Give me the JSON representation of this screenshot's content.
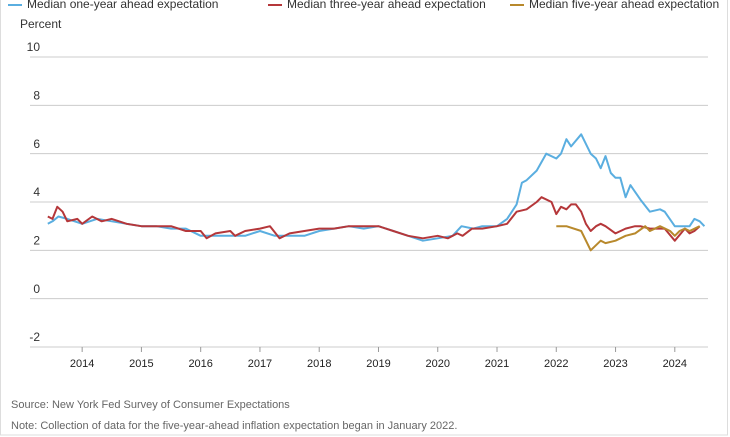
{
  "chart_data": {
    "type": "line",
    "y_axis_label": "Percent",
    "source": "Source: New York Fed Survey of Consumer Expectations",
    "note": "Note: Collection of data for the five-year-ahead inflation expectation began in January 2022.",
    "xlim": [
      2013.12,
      2024.56
    ],
    "xticks": [
      2014,
      2015,
      2016,
      2017,
      2018,
      2019,
      2020,
      2021,
      2022,
      2023,
      2024
    ],
    "ylim": [
      -2,
      10
    ],
    "yticks": [
      -2,
      0,
      2,
      4,
      6,
      8,
      10
    ],
    "grid": true,
    "legend": "top",
    "series": [
      {
        "name": "Median one-year ahead expectation",
        "color": "#5aaee0",
        "x": [
          2013.42,
          2013.5,
          2013.6,
          2013.75,
          2014,
          2014.25,
          2014.5,
          2014.75,
          2015,
          2015.25,
          2015.5,
          2015.75,
          2016,
          2016.25,
          2016.5,
          2016.75,
          2017,
          2017.25,
          2017.5,
          2017.75,
          2018,
          2018.25,
          2018.5,
          2018.75,
          2019,
          2019.25,
          2019.5,
          2019.75,
          2020,
          2020.25,
          2020.4,
          2020.6,
          2020.75,
          2021,
          2021.17,
          2021.33,
          2021.42,
          2021.5,
          2021.67,
          2021.83,
          2022,
          2022.08,
          2022.17,
          2022.25,
          2022.42,
          2022.58,
          2022.67,
          2022.75,
          2022.83,
          2022.92,
          2023,
          2023.08,
          2023.17,
          2023.25,
          2023.42,
          2023.58,
          2023.75,
          2023.83,
          2024,
          2024.17,
          2024.25,
          2024.33,
          2024.42,
          2024.5
        ],
        "values": [
          3.1,
          3.2,
          3.4,
          3.3,
          3.1,
          3.3,
          3.2,
          3.1,
          3.0,
          3.0,
          2.9,
          2.9,
          2.6,
          2.6,
          2.6,
          2.6,
          2.8,
          2.6,
          2.6,
          2.6,
          2.8,
          2.9,
          3.0,
          2.9,
          3.0,
          2.8,
          2.6,
          2.4,
          2.5,
          2.6,
          3.0,
          2.9,
          3.0,
          3.0,
          3.3,
          3.9,
          4.8,
          4.9,
          5.3,
          6.0,
          5.8,
          6.0,
          6.6,
          6.3,
          6.8,
          6.0,
          5.8,
          5.4,
          5.9,
          5.2,
          5.0,
          5.0,
          4.2,
          4.7,
          4.1,
          3.6,
          3.7,
          3.6,
          3.0,
          3.0,
          3.0,
          3.3,
          3.2,
          3.0
        ]
      },
      {
        "name": "Median three-year ahead expectation",
        "color": "#b5373a",
        "x": [
          2013.42,
          2013.5,
          2013.58,
          2013.67,
          2013.75,
          2013.92,
          2014,
          2014.17,
          2014.33,
          2014.5,
          2014.75,
          2015,
          2015.25,
          2015.5,
          2015.75,
          2016,
          2016.1,
          2016.25,
          2016.5,
          2016.58,
          2016.75,
          2017,
          2017.17,
          2017.33,
          2017.5,
          2017.75,
          2018,
          2018.25,
          2018.5,
          2018.75,
          2019,
          2019.25,
          2019.5,
          2019.75,
          2020,
          2020.17,
          2020.33,
          2020.42,
          2020.58,
          2020.75,
          2021,
          2021.17,
          2021.33,
          2021.5,
          2021.67,
          2021.75,
          2021.92,
          2022,
          2022.08,
          2022.17,
          2022.25,
          2022.33,
          2022.42,
          2022.5,
          2022.58,
          2022.67,
          2022.75,
          2022.83,
          2023,
          2023.17,
          2023.33,
          2023.42,
          2023.58,
          2023.67,
          2023.83,
          2024,
          2024.17,
          2024.25,
          2024.33,
          2024.42
        ],
        "values": [
          3.4,
          3.3,
          3.8,
          3.6,
          3.2,
          3.3,
          3.1,
          3.4,
          3.2,
          3.3,
          3.1,
          3.0,
          3.0,
          3.0,
          2.8,
          2.8,
          2.5,
          2.7,
          2.8,
          2.6,
          2.8,
          2.9,
          3.0,
          2.5,
          2.7,
          2.8,
          2.9,
          2.9,
          3.0,
          3.0,
          3.0,
          2.8,
          2.6,
          2.5,
          2.6,
          2.5,
          2.7,
          2.6,
          2.9,
          2.9,
          3.0,
          3.1,
          3.6,
          3.7,
          4.0,
          4.2,
          4.0,
          3.5,
          3.8,
          3.7,
          3.9,
          3.9,
          3.6,
          3.1,
          2.8,
          3.0,
          3.1,
          3.0,
          2.7,
          2.9,
          3.0,
          3.0,
          2.9,
          2.9,
          2.9,
          2.4,
          2.9,
          2.7,
          2.8,
          3.0
        ]
      },
      {
        "name": "Median five-year ahead expectation",
        "color": "#b8892c",
        "x": [
          2022,
          2022.17,
          2022.42,
          2022.58,
          2022.75,
          2022.83,
          2023,
          2023.17,
          2023.33,
          2023.5,
          2023.58,
          2023.75,
          2023.92,
          2024,
          2024.08,
          2024.17,
          2024.25,
          2024.42
        ],
        "values": [
          3.0,
          3.0,
          2.8,
          2.0,
          2.4,
          2.3,
          2.4,
          2.6,
          2.7,
          3.0,
          2.8,
          3.0,
          2.8,
          2.6,
          2.8,
          2.9,
          2.8,
          3.0
        ]
      }
    ]
  }
}
